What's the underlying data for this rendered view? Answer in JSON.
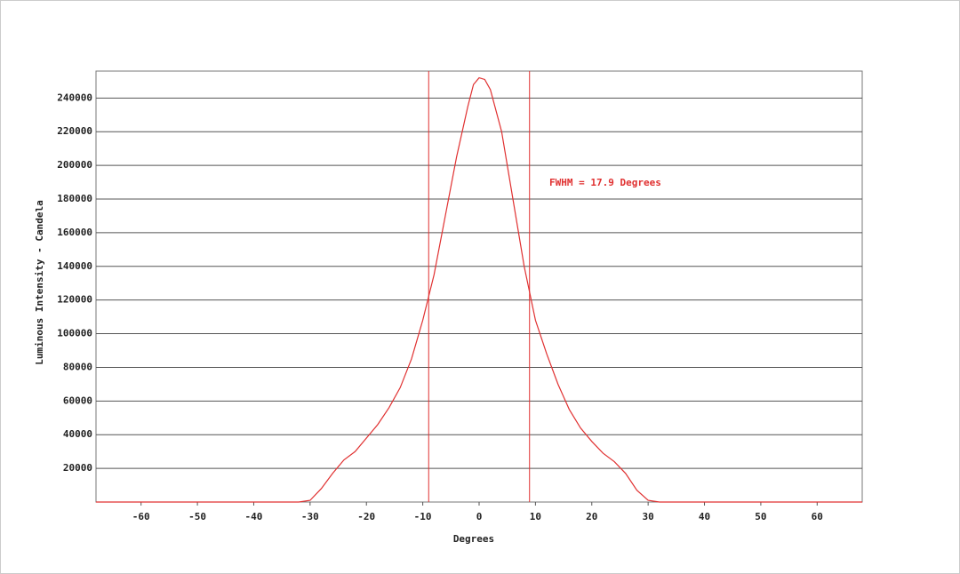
{
  "chart_data": {
    "type": "line",
    "x_label": "Degrees",
    "y_label": "Luminous Intensity - Candela",
    "annotation": "FWHM = 17.9 Degrees",
    "marker_lines": [
      -8.95,
      8.95
    ],
    "color": "#e03030",
    "x": [
      -68,
      -32,
      -30,
      -28,
      -26,
      -24,
      -22,
      -20,
      -18,
      -16,
      -14,
      -12,
      -10,
      -8,
      -6,
      -4,
      -2,
      -1,
      0,
      1,
      2,
      4,
      6,
      8,
      10,
      12,
      14,
      16,
      18,
      20,
      22,
      24,
      26,
      28,
      30,
      32,
      68
    ],
    "values": [
      0,
      0,
      1000,
      8000,
      17000,
      25000,
      30000,
      38000,
      46000,
      56000,
      68000,
      85000,
      108000,
      135000,
      170000,
      205000,
      235000,
      248000,
      252000,
      251000,
      245000,
      220000,
      180000,
      140000,
      108000,
      88000,
      70000,
      55000,
      44000,
      36000,
      29000,
      24000,
      17000,
      7000,
      1000,
      0,
      0
    ],
    "xlim": [
      -68,
      68
    ],
    "ylim": [
      0,
      256000
    ],
    "xticks": [
      -60,
      -50,
      -40,
      -30,
      -20,
      -10,
      0,
      10,
      20,
      30,
      40,
      50,
      60
    ],
    "yticks": [
      20000,
      40000,
      60000,
      80000,
      100000,
      120000,
      140000,
      160000,
      180000,
      200000,
      220000,
      240000
    ],
    "grid": true
  }
}
